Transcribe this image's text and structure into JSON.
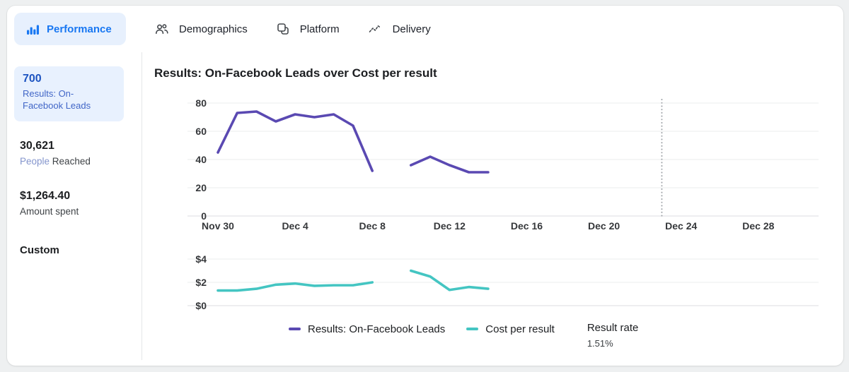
{
  "tabs": {
    "performance": {
      "label": "Performance",
      "icon": "bar-chart-icon",
      "active": true,
      "accent_color": "#1877f2",
      "chip_bg": "#e7f0fd"
    },
    "items": [
      {
        "label": "Demographics",
        "icon": "people-icon"
      },
      {
        "label": "Platform",
        "icon": "overlap-squares-icon"
      },
      {
        "label": "Delivery",
        "icon": "trend-zigzag-icon"
      }
    ]
  },
  "sidebar": {
    "results_card": {
      "value": "700",
      "label": "Results: On-Facebook Leads",
      "selected": true,
      "bg_color": "#e8f1fe"
    },
    "reach": {
      "value": "30,621",
      "label_highlight": "People",
      "label_rest": " Reached"
    },
    "spend": {
      "value": "$1,264.40",
      "label": "Amount spent"
    },
    "custom": {
      "label": "Custom"
    }
  },
  "main": {
    "title": "Results: On-Facebook Leads over Cost per result"
  },
  "legend": {
    "items": [
      {
        "label": "Results: On-Facebook Leads",
        "color": "#5a49b2"
      },
      {
        "label": "Cost per result",
        "color": "#44c5c2"
      }
    ],
    "result_rate": {
      "label": "Result rate",
      "value": "1.51%"
    }
  },
  "chart_data": [
    {
      "id": "leads",
      "type": "line",
      "title": "Results: On-Facebook Leads",
      "x_days": [
        0,
        1,
        2,
        3,
        4,
        5,
        6,
        7,
        8,
        9,
        10,
        11,
        12,
        13,
        14
      ],
      "x_ticks": [
        {
          "d": 0,
          "label": "Nov 30"
        },
        {
          "d": 4,
          "label": "Dec 4"
        },
        {
          "d": 8,
          "label": "Dec 8"
        },
        {
          "d": 12,
          "label": "Dec 12"
        },
        {
          "d": 16,
          "label": "Dec 16"
        },
        {
          "d": 20,
          "label": "Dec 20"
        },
        {
          "d": 24,
          "label": "Dec 24"
        },
        {
          "d": 28,
          "label": "Dec 28"
        }
      ],
      "ylim": [
        0,
        80
      ],
      "y_ticks": [
        {
          "v": 0,
          "label": "0"
        },
        {
          "v": 20,
          "label": "20"
        },
        {
          "v": 40,
          "label": "40"
        },
        {
          "v": 60,
          "label": "60"
        },
        {
          "v": 80,
          "label": "80"
        }
      ],
      "grid": true,
      "marker_line_day": 23,
      "series": [
        {
          "name": "Results: On-Facebook Leads",
          "color": "#5a49b2",
          "values": [
            45,
            73,
            74,
            67,
            72,
            70,
            72,
            64,
            32,
            null,
            36,
            42,
            36,
            31,
            31
          ]
        }
      ]
    },
    {
      "id": "cost",
      "type": "line",
      "title": "Cost per result",
      "x_days": [
        0,
        1,
        2,
        3,
        4,
        5,
        6,
        7,
        8,
        9,
        10,
        11,
        12,
        13,
        14
      ],
      "x_ticks": [],
      "ylim": [
        0,
        4
      ],
      "y_ticks": [
        {
          "v": 0,
          "label": "$0"
        },
        {
          "v": 2,
          "label": "$2"
        },
        {
          "v": 4,
          "label": "$4"
        }
      ],
      "grid": true,
      "series": [
        {
          "name": "Cost per result",
          "color": "#44c5c2",
          "values": [
            1.3,
            1.3,
            1.45,
            1.8,
            1.9,
            1.7,
            1.75,
            1.75,
            2.0,
            null,
            3.0,
            2.5,
            1.35,
            1.6,
            1.45
          ]
        }
      ]
    }
  ]
}
